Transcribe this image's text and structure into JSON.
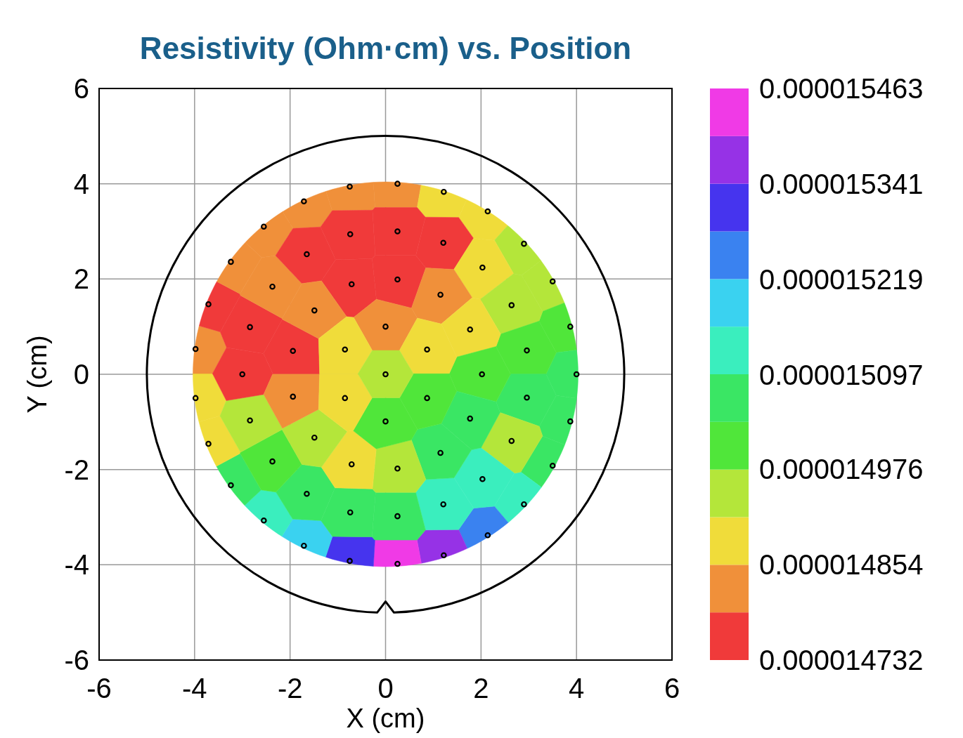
{
  "chart_data": {
    "type": "scatter",
    "title": "Resistivity (Ohm·cm) vs. Position",
    "xlabel": "X (cm)",
    "ylabel": "Y (cm)",
    "xlim": [
      -6,
      6
    ],
    "ylim": [
      -6,
      6
    ],
    "xticks": [
      -6,
      -4,
      -2,
      0,
      2,
      4,
      6
    ],
    "yticks": [
      -6,
      -4,
      -2,
      0,
      2,
      4,
      6
    ],
    "grid": true,
    "marker": "circle",
    "clim": [
      1.4732e-05,
      1.5463e-05
    ],
    "cticks": [
      {
        "value": 1.4732e-05,
        "label": "0.000014732"
      },
      {
        "value": 1.4854e-05,
        "label": "0.000014854"
      },
      {
        "value": 1.4976e-05,
        "label": "0.000014976"
      },
      {
        "value": 1.5097e-05,
        "label": "0.000015097"
      },
      {
        "value": 1.5219e-05,
        "label": "0.000015219"
      },
      {
        "value": 1.5341e-05,
        "label": "0.000015341"
      },
      {
        "value": 1.5463e-05,
        "label": "0.000015463"
      }
    ],
    "x": [
      -0.75,
      0.25,
      1.22,
      2.14,
      2.9,
      3.5,
      3.87,
      4,
      3.87,
      3.5,
      2.9,
      2.14,
      1.22,
      0.25,
      -0.75,
      -1.71,
      -2.55,
      -3.24,
      -3.71,
      -3.98,
      -3.98,
      -3.71,
      -3.24,
      -2.55,
      -1.71,
      -0.74,
      0.25,
      1.21,
      2.03,
      2.64,
      2.96,
      2.96,
      2.64,
      2.03,
      1.21,
      0.25,
      -0.74,
      -1.65,
      -2.37,
      -2.84,
      -3,
      -2.84,
      -2.37,
      -1.65,
      -0.71,
      0.25,
      1.15,
      1.77,
      2.02,
      1.77,
      1.15,
      0.25,
      -0.71,
      -1.49,
      -1.94,
      -1.94,
      -1.49,
      0,
      0.87,
      0.87,
      0,
      -0.85,
      -0.85,
      0
    ],
    "values": [
      3.94,
      4,
      3.83,
      3.42,
      2.74,
      1.95,
      1,
      0,
      -0.99,
      -1.92,
      -2.73,
      -3.38,
      -3.8,
      -3.98,
      -3.92,
      -3.6,
      -3.07,
      -2.33,
      -1.46,
      -0.5,
      0.53,
      1.47,
      2.36,
      3.1,
      3.63,
      2.94,
      3,
      2.76,
      2.24,
      1.45,
      0.5,
      -0.49,
      -1.4,
      -2.2,
      -2.73,
      -2.98,
      -2.9,
      -2.51,
      -1.83,
      -0.97,
      0,
      0.99,
      1.84,
      2.52,
      1.89,
      1.99,
      1.67,
      0.94,
      0,
      -0.93,
      -1.65,
      -1.98,
      -1.89,
      -1.33,
      -0.47,
      0.49,
      1.34,
      1,
      0.52,
      -0.5,
      -0.99,
      -0.5,
      0.52,
      0
    ],
    "cvalues": [
      1.482e-05,
      1.482e-05,
      1.488e-05,
      1.488e-05,
      1.494e-05,
      1.494e-05,
      1.5e-05,
      1.506e-05,
      1.506e-05,
      1.506e-05,
      1.512e-05,
      1.525e-05,
      1.537e-05,
      1.543e-05,
      1.531e-05,
      1.518e-05,
      1.512e-05,
      1.506e-05,
      1.488e-05,
      1.488e-05,
      1.482e-05,
      1.476e-05,
      1.482e-05,
      1.482e-05,
      1.482e-05,
      1.476e-05,
      1.476e-05,
      1.476e-05,
      1.488e-05,
      1.494e-05,
      1.5e-05,
      1.506e-05,
      1.494e-05,
      1.512e-05,
      1.512e-05,
      1.506e-05,
      1.506e-05,
      1.506e-05,
      1.5e-05,
      1.494e-05,
      1.476e-05,
      1.476e-05,
      1.482e-05,
      1.476e-05,
      1.476e-05,
      1.476e-05,
      1.482e-05,
      1.488e-05,
      1.5e-05,
      1.506e-05,
      1.506e-05,
      1.494e-05,
      1.488e-05,
      1.494e-05,
      1.482e-05,
      1.476e-05,
      1.482e-05,
      1.482e-05,
      1.488e-05,
      1.5e-05,
      1.5e-05,
      1.488e-05,
      1.488e-05,
      1.494e-05
    ]
  }
}
